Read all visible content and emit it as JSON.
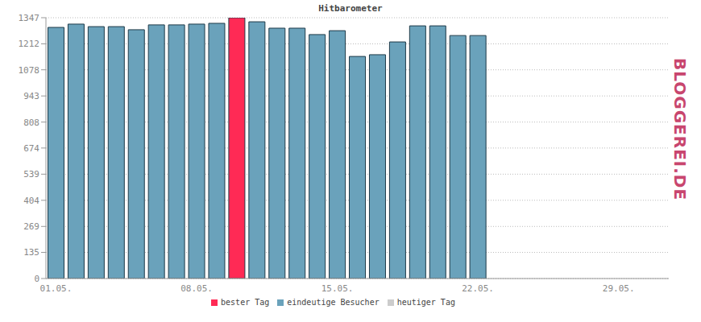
{
  "chart_data": {
    "type": "bar",
    "title": "Hitbarometer",
    "annotations": [
      "BLOGGEREI.DE"
    ],
    "categories": [
      "01.05.",
      null,
      null,
      null,
      null,
      null,
      null,
      "08.05.",
      null,
      null,
      null,
      null,
      null,
      null,
      "15.05.",
      null,
      null,
      null,
      null,
      null,
      null,
      "22.05.",
      null,
      null,
      null,
      null,
      null,
      null,
      "29.05.",
      null,
      null
    ],
    "series": [
      {
        "name": "eindeutige Besucher",
        "color": "#6aa2bb",
        "values": [
          1297,
          1314,
          1301,
          1301,
          1285,
          1310,
          1310,
          1314,
          1318,
          null,
          1326,
          1293,
          1293,
          1260,
          1280,
          1147,
          1156,
          1222,
          1305,
          1305,
          1255,
          1255,
          null,
          null,
          null,
          null,
          null,
          null,
          null,
          null,
          null
        ]
      },
      {
        "name": "bester Tag",
        "color": "#ff2a55",
        "values": [
          null,
          null,
          null,
          null,
          null,
          null,
          null,
          null,
          null,
          1347,
          null,
          null,
          null,
          null,
          null,
          null,
          null,
          null,
          null,
          null,
          null,
          null,
          null,
          null,
          null,
          null,
          null,
          null,
          null,
          null,
          null
        ]
      },
      {
        "name": "heutiger Tag",
        "color": "#cccccc",
        "values": [
          null,
          null,
          null,
          null,
          null,
          null,
          null,
          null,
          null,
          null,
          null,
          null,
          null,
          null,
          null,
          null,
          null,
          null,
          null,
          null,
          null,
          null,
          0,
          null,
          null,
          null,
          null,
          null,
          null,
          null,
          null
        ]
      }
    ],
    "ylim": [
      0,
      1347
    ],
    "yticks": [
      0,
      135,
      269,
      404,
      539,
      674,
      808,
      943,
      1078,
      1212,
      1347
    ],
    "grid": true,
    "stacked": true,
    "legend": "bottom"
  }
}
